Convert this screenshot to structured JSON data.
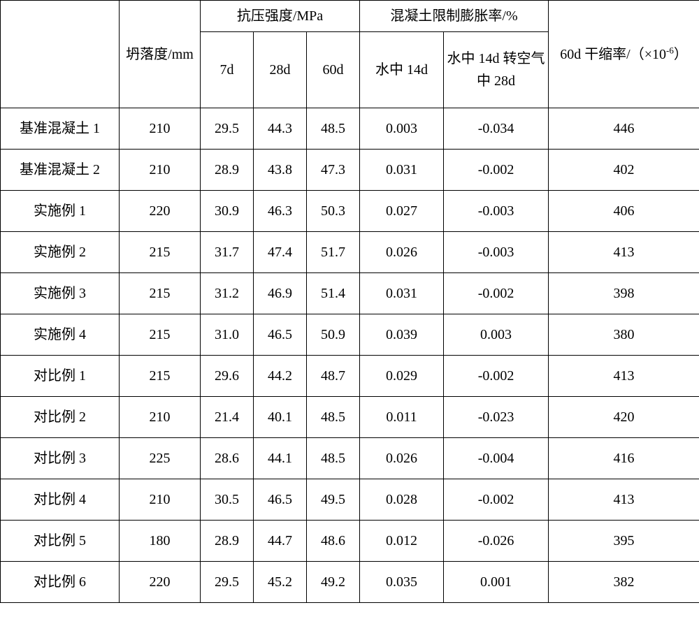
{
  "table": {
    "background_color": "#ffffff",
    "border_color": "#000000",
    "font_family": "SimSun",
    "font_size_pt": 15,
    "header": {
      "blank": "",
      "slump": "坍落度/mm",
      "strength_group": "抗压强度/MPa",
      "strength_7d": "7d",
      "strength_28d": "28d",
      "strength_60d": "60d",
      "expansion_group": "混凝土限制膨胀率/%",
      "expansion_w14": "水中 14d",
      "expansion_w28": "水中 14d 转空气中 28d",
      "shrink_prefix": "60d 干缩率/（×10",
      "shrink_exp": "-6",
      "shrink_suffix": "）"
    },
    "rows": [
      {
        "label": "基准混凝土 1",
        "slump": "210",
        "s7": "29.5",
        "s28": "44.3",
        "s60": "48.5",
        "w14": "0.003",
        "w28": "-0.034",
        "shrink": "446"
      },
      {
        "label": "基准混凝土 2",
        "slump": "210",
        "s7": "28.9",
        "s28": "43.8",
        "s60": "47.3",
        "w14": "0.031",
        "w28": "-0.002",
        "shrink": "402"
      },
      {
        "label": "实施例 1",
        "slump": "220",
        "s7": "30.9",
        "s28": "46.3",
        "s60": "50.3",
        "w14": "0.027",
        "w28": "-0.003",
        "shrink": "406"
      },
      {
        "label": "实施例 2",
        "slump": "215",
        "s7": "31.7",
        "s28": "47.4",
        "s60": "51.7",
        "w14": "0.026",
        "w28": "-0.003",
        "shrink": "413"
      },
      {
        "label": "实施例 3",
        "slump": "215",
        "s7": "31.2",
        "s28": "46.9",
        "s60": "51.4",
        "w14": "0.031",
        "w28": "-0.002",
        "shrink": "398"
      },
      {
        "label": "实施例 4",
        "slump": "215",
        "s7": "31.0",
        "s28": "46.5",
        "s60": "50.9",
        "w14": "0.039",
        "w28": "0.003",
        "shrink": "380"
      },
      {
        "label": "对比例 1",
        "slump": "215",
        "s7": "29.6",
        "s28": "44.2",
        "s60": "48.7",
        "w14": "0.029",
        "w28": "-0.002",
        "shrink": "413"
      },
      {
        "label": "对比例 2",
        "slump": "210",
        "s7": "21.4",
        "s28": "40.1",
        "s60": "48.5",
        "w14": "0.011",
        "w28": "-0.023",
        "shrink": "420"
      },
      {
        "label": "对比例 3",
        "slump": "225",
        "s7": "28.6",
        "s28": "44.1",
        "s60": "48.5",
        "w14": "0.026",
        "w28": "-0.004",
        "shrink": "416"
      },
      {
        "label": "对比例 4",
        "slump": "210",
        "s7": "30.5",
        "s28": "46.5",
        "s60": "49.5",
        "w14": "0.028",
        "w28": "-0.002",
        "shrink": "413"
      },
      {
        "label": "对比例 5",
        "slump": "180",
        "s7": "28.9",
        "s28": "44.7",
        "s60": "48.6",
        "w14": "0.012",
        "w28": "-0.026",
        "shrink": "395"
      },
      {
        "label": "对比例 6",
        "slump": "220",
        "s7": "29.5",
        "s28": "45.2",
        "s60": "49.2",
        "w14": "0.035",
        "w28": "0.001",
        "shrink": "382"
      }
    ]
  }
}
